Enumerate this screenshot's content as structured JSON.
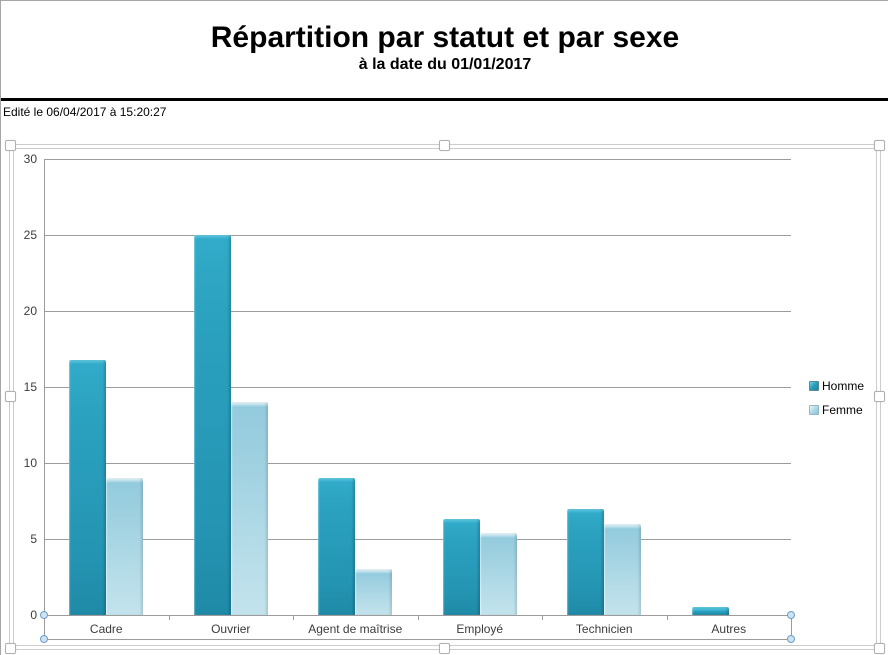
{
  "header": {
    "title": "Répartition par statut et par sexe",
    "subtitle": "à la date du 01/01/2017",
    "edited": "Edité le 06/04/2017 à 15:20:27"
  },
  "chart_data": {
    "type": "bar",
    "title": "",
    "xlabel": "",
    "ylabel": "",
    "categories": [
      "Cadre",
      "Ouvrier",
      "Agent de maîtrise",
      "Employé",
      "Technicien",
      "Autres"
    ],
    "series": [
      {
        "name": "Homme",
        "color": "#2b9fbd",
        "values": [
          16.8,
          25,
          9,
          6.3,
          7,
          0.5
        ]
      },
      {
        "name": "Femme",
        "color": "#a9d6e5",
        "values": [
          9,
          14,
          3,
          5.4,
          6,
          0
        ]
      }
    ],
    "ylim": [
      0,
      30
    ],
    "yticks": [
      0,
      5,
      10,
      15,
      20,
      25,
      30
    ],
    "grid": true,
    "legend_position": "right"
  },
  "colors": {
    "homme": "#2b9fbd",
    "femme": "#a9d6e5",
    "gridline": "#9c9c9c",
    "axis_text": "#3c3c3c",
    "separator": "#000000",
    "selection_frame": "#cccccc",
    "axis_handle_fill": "#cde2f2",
    "axis_handle_border": "#6d9ec8"
  }
}
